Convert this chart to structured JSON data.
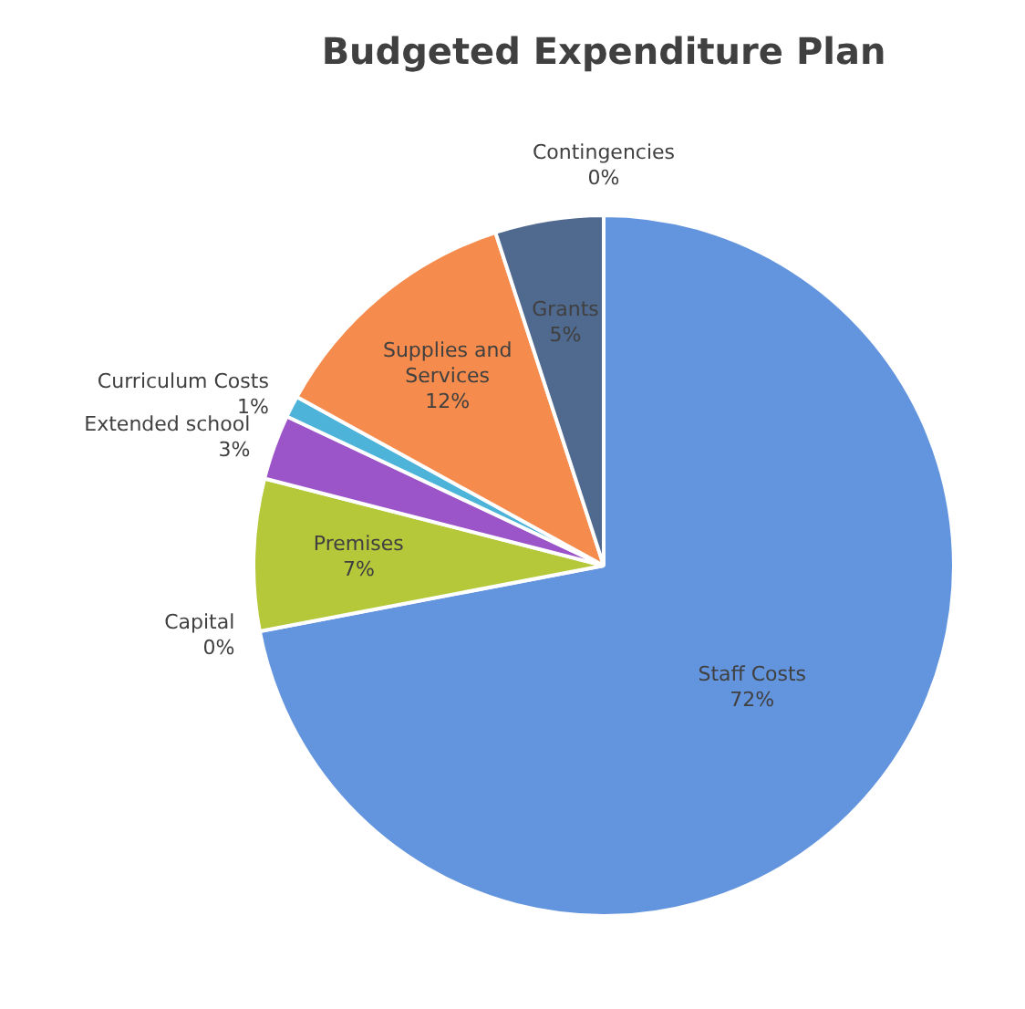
{
  "chart_data": {
    "type": "pie",
    "title": "Budgeted Expenditure Plan",
    "categories": [
      "Staff Costs",
      "Capital",
      "Premises",
      "Extended school",
      "Curriculum Costs",
      "Supplies and Services",
      "Grants",
      "Contingencies"
    ],
    "values": [
      72,
      0,
      7,
      3,
      1,
      12,
      5,
      0
    ],
    "value_labels": [
      "72%",
      "0%",
      "7%",
      "3%",
      "1%",
      "12%",
      "5%",
      "0%"
    ],
    "colors": [
      "#6394de",
      "#a5a5a5",
      "#b4c83a",
      "#9b55c8",
      "#4eb3d8",
      "#f58b4c",
      "#50698f",
      "#7f7f7f"
    ]
  }
}
